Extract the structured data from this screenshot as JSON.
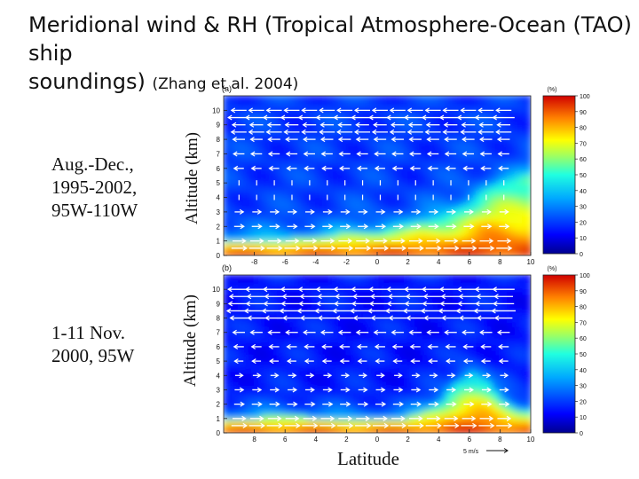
{
  "slide": {
    "title_main": "Meridional wind & RH (Tropical Atmosphere-Ocean (TAO) ship",
    "title_line2": "soundings)",
    "title_cite": "(Zhang et al. 2004)",
    "panel_a_caption": [
      "Aug.-Dec.,",
      "1995-2002,",
      "95W-110W"
    ],
    "panel_b_caption": [
      "1-11 Nov.",
      "2000, 95W"
    ],
    "ylabel_a": "Altitude (km)",
    "ylabel_b": "Altitude (km)",
    "xlabel": "Latitude"
  },
  "chart_data": [
    {
      "type": "heatmap",
      "panel_label": "(a)",
      "description": "Relative humidity (color) with meridional wind vectors",
      "xlabel": "Latitude",
      "ylabel": "Altitude (km)",
      "xlim": [
        -10,
        10
      ],
      "ylim": [
        0,
        11
      ],
      "x_ticks": [
        "-8",
        "-6",
        "-4",
        "-2",
        "0",
        "2",
        "4",
        "6",
        "8",
        "10"
      ],
      "y_ticks": [
        "0",
        "1",
        "2",
        "3",
        "4",
        "5",
        "6",
        "7",
        "8",
        "9",
        "10"
      ],
      "colorbar": {
        "unit": "(%)",
        "min": 0,
        "max": 100,
        "ticks": [
          "0",
          "10",
          "20",
          "30",
          "40",
          "50",
          "60",
          "70",
          "80",
          "90",
          "100"
        ]
      },
      "rh_profile": {
        "lat": [
          -10,
          -6,
          -4,
          -2,
          0,
          2,
          4,
          5,
          6,
          7,
          8,
          9,
          10
        ],
        "moist_top_km": [
          1.0,
          1.1,
          1.2,
          1.5,
          1.7,
          2.0,
          2.6,
          3.0,
          3.6,
          4.5,
          5.0,
          5.2,
          5.5
        ],
        "surface_rh": 95,
        "free_troposphere_rh": 20
      },
      "wind_vectors": [
        {
          "alt": 10.0,
          "dir": -1,
          "speed": 1.0
        },
        {
          "alt": 9.5,
          "dir": -1,
          "speed": 1.6
        },
        {
          "alt": 9.0,
          "dir": -1,
          "speed": 0.8
        },
        {
          "alt": 8.5,
          "dir": -1,
          "speed": 1.0
        },
        {
          "alt": 8.0,
          "dir": -1,
          "speed": 0.7
        },
        {
          "alt": 7.0,
          "dir": -1,
          "speed": 0.6
        },
        {
          "alt": 6.0,
          "dir": -1,
          "speed": 0.5
        },
        {
          "alt": 5.0,
          "dir": 0,
          "speed": 0.3
        },
        {
          "alt": 4.0,
          "dir": 0,
          "speed": 0.3
        },
        {
          "alt": 3.0,
          "dir": 1,
          "speed": 0.4
        },
        {
          "alt": 2.0,
          "dir": 1,
          "speed": 0.5
        },
        {
          "alt": 1.0,
          "dir": 1,
          "speed": 0.8
        },
        {
          "alt": 0.5,
          "dir": 1,
          "speed": 1.0
        }
      ]
    },
    {
      "type": "heatmap",
      "panel_label": "(b)",
      "description": "Relative humidity (color) with meridional wind vectors",
      "xlabel": "Latitude",
      "ylabel": "Altitude (km)",
      "xlim": [
        -10,
        10
      ],
      "ylim": [
        0,
        11
      ],
      "x_ticks": [
        "8",
        "6",
        "4",
        "2",
        "0",
        "2",
        "4",
        "6",
        "8",
        "10"
      ],
      "y_ticks": [
        "0",
        "1",
        "2",
        "3",
        "4",
        "5",
        "6",
        "7",
        "8",
        "9",
        "10"
      ],
      "colorbar": {
        "unit": "(%)",
        "min": 0,
        "max": 100,
        "ticks": [
          "0",
          "10",
          "20",
          "30",
          "40",
          "50",
          "60",
          "70",
          "80",
          "90",
          "100"
        ]
      },
      "rh_profile": {
        "lat": [
          -10,
          -6,
          -4,
          -2,
          0,
          2,
          4,
          5,
          6,
          7,
          8,
          9,
          10
        ],
        "moist_top_km": [
          1.0,
          1.2,
          1.1,
          1.0,
          1.0,
          1.1,
          2.0,
          3.2,
          4.2,
          3.8,
          2.5,
          1.8,
          1.6
        ],
        "surface_rh": 95,
        "free_troposphere_rh": 15
      },
      "wind_vectors": [
        {
          "alt": 10.0,
          "dir": -1,
          "speed": 1.6
        },
        {
          "alt": 9.5,
          "dir": -1,
          "speed": 1.3
        },
        {
          "alt": 9.0,
          "dir": -1,
          "speed": 1.5
        },
        {
          "alt": 8.5,
          "dir": -1,
          "speed": 1.8
        },
        {
          "alt": 8.0,
          "dir": -1,
          "speed": 1.2
        },
        {
          "alt": 7.0,
          "dir": -1,
          "speed": 0.7
        },
        {
          "alt": 6.0,
          "dir": -1,
          "speed": 0.5
        },
        {
          "alt": 5.0,
          "dir": -1,
          "speed": 0.4
        },
        {
          "alt": 4.0,
          "dir": 1,
          "speed": 0.3
        },
        {
          "alt": 3.0,
          "dir": 1,
          "speed": 0.4
        },
        {
          "alt": 2.0,
          "dir": 1,
          "speed": 0.5
        },
        {
          "alt": 1.0,
          "dir": 1,
          "speed": 0.8
        },
        {
          "alt": 0.5,
          "dir": 1,
          "speed": 1.0
        }
      ],
      "scale_arrow_label": "5 m/s"
    }
  ]
}
